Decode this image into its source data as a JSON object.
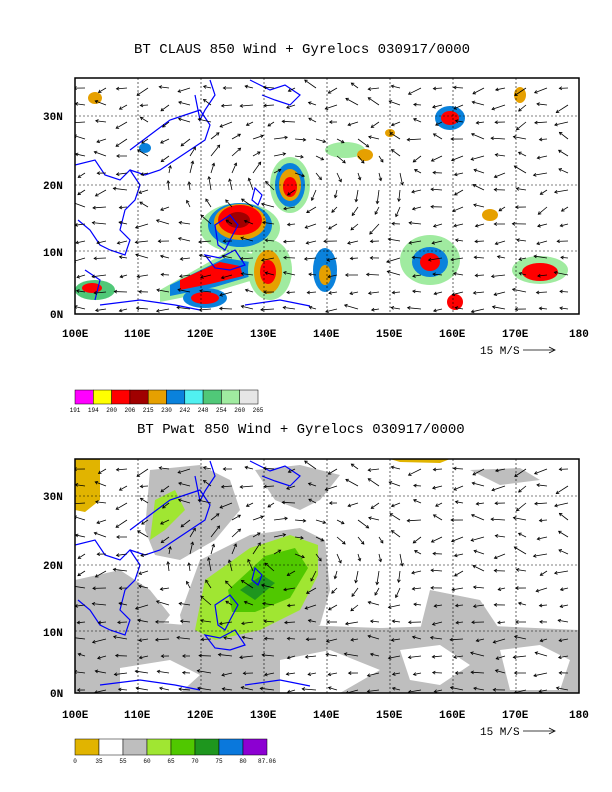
{
  "panel1": {
    "title": "BT CLAUS 850 Wind + Gyrelocs 030917/0000",
    "lon_labels": [
      "100E",
      "110E",
      "120E",
      "130E",
      "140E",
      "150E",
      "160E",
      "170E",
      "180"
    ],
    "lat_labels": [
      "0N",
      "10N",
      "20N",
      "30N"
    ],
    "vector_ref": "15 M/S",
    "colorbar": {
      "colors": [
        "#ff00ff",
        "#ffff00",
        "#ff0000",
        "#a00000",
        "#e6a000",
        "#0a82dc",
        "#50f0f0",
        "#50c878",
        "#a0eba0",
        "#e6e6e6"
      ],
      "labels": [
        "191",
        "194",
        "200",
        "206",
        "215",
        "230",
        "242",
        "248",
        "254",
        "260",
        "265"
      ]
    }
  },
  "panel2": {
    "title": "BT Pwat 850 Wind + Gyrelocs 030917/0000",
    "lon_labels": [
      "100E",
      "110E",
      "120E",
      "130E",
      "140E",
      "150E",
      "160E",
      "170E",
      "180"
    ],
    "lat_labels": [
      "0N",
      "10N",
      "20N",
      "30N"
    ],
    "vector_ref": "15 M/S",
    "colorbar": {
      "colors": [
        "#e1b400",
        "#ffffff",
        "#bebebe",
        "#a0e632",
        "#50c800",
        "#1e961e",
        "#0a78dc",
        "#8c00d2"
      ],
      "labels": [
        "0",
        "35",
        "55",
        "60",
        "65",
        "70",
        "75",
        "80",
        "87.06"
      ]
    }
  }
}
